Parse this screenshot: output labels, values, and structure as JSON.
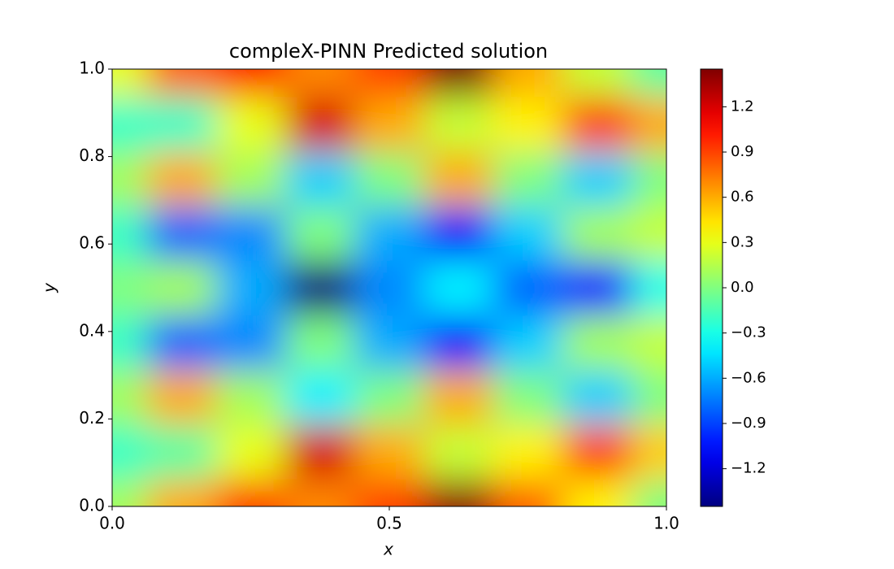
{
  "chart_data": {
    "type": "heatmap",
    "title": "compleX-PINN Predicted solution",
    "x_label": "x",
    "y_label": "y",
    "colormap": "jet",
    "x": [
      0,
      0.125,
      0.25,
      0.375,
      0.5,
      0.625,
      0.75,
      0.875,
      1
    ],
    "y": [
      0,
      0.125,
      0.25,
      0.375,
      0.5,
      0.625,
      0.75,
      0.875,
      1
    ],
    "z": [
      [
        0.1,
        0.6,
        0.9,
        0.7,
        0.9,
        1.4,
        0.8,
        0.4,
        0.0
      ],
      [
        -0.2,
        -0.1,
        0.3,
        1.2,
        0.6,
        0.2,
        0.4,
        0.9,
        0.5
      ],
      [
        0.1,
        0.6,
        0.1,
        -0.4,
        0.0,
        0.6,
        0.0,
        -0.5,
        0.0
      ],
      [
        -0.2,
        -0.8,
        -0.7,
        0.0,
        -0.6,
        -1.1,
        -0.5,
        0.1,
        0.2
      ],
      [
        0.0,
        0.1,
        -0.6,
        -1.45,
        -0.7,
        -0.4,
        -0.8,
        -1.0,
        -0.3
      ],
      [
        -0.2,
        -0.8,
        -0.7,
        0.0,
        -0.6,
        -1.1,
        -0.5,
        0.1,
        0.2
      ],
      [
        0.1,
        0.6,
        0.1,
        -0.5,
        0.0,
        0.6,
        0.0,
        -0.5,
        0.0
      ],
      [
        -0.2,
        -0.2,
        0.3,
        1.2,
        0.6,
        0.2,
        0.4,
        0.9,
        0.6
      ],
      [
        0.3,
        0.8,
        1.0,
        0.7,
        0.9,
        1.45,
        0.6,
        0.2,
        -0.1
      ]
    ],
    "xlim": [
      0,
      1
    ],
    "ylim": [
      0,
      1
    ],
    "zlim": [
      -1.45,
      1.45
    ],
    "xticks": [
      {
        "value": 0,
        "label": "0.0"
      },
      {
        "value": 0.5,
        "label": "0.5"
      },
      {
        "value": 1,
        "label": "1.0"
      }
    ],
    "yticks": [
      {
        "value": 0,
        "label": "0.0"
      },
      {
        "value": 0.2,
        "label": "0.2"
      },
      {
        "value": 0.4,
        "label": "0.4"
      },
      {
        "value": 0.6,
        "label": "0.6"
      },
      {
        "value": 0.8,
        "label": "0.8"
      },
      {
        "value": 1,
        "label": "1.0"
      }
    ],
    "zticks": [
      {
        "value": -1.2,
        "label": "−1.2"
      },
      {
        "value": -0.9,
        "label": "−0.9"
      },
      {
        "value": -0.6,
        "label": "−0.6"
      },
      {
        "value": -0.3,
        "label": "−0.3"
      },
      {
        "value": 0,
        "label": "0.0"
      },
      {
        "value": 0.3,
        "label": "0.3"
      },
      {
        "value": 0.6,
        "label": "0.6"
      },
      {
        "value": 0.9,
        "label": "0.9"
      },
      {
        "value": 1.2,
        "label": "1.2"
      }
    ]
  }
}
